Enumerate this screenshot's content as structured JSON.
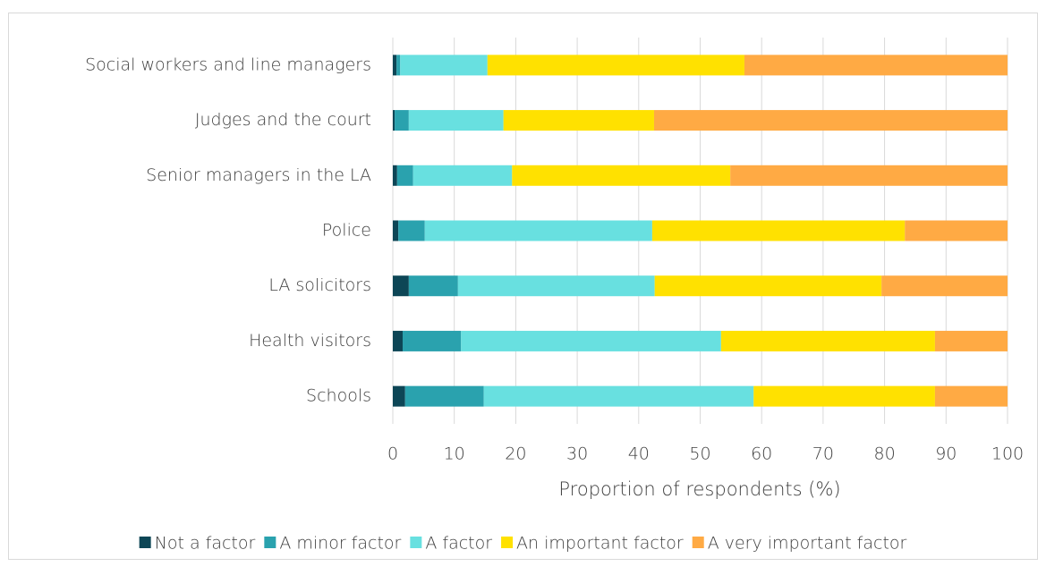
{
  "chart_data": {
    "type": "bar",
    "orientation": "horizontal",
    "stacked": true,
    "categories": [
      "Social workers and line managers",
      "Judges and the court",
      "Senior managers in the LA",
      "Police",
      "LA solicitors",
      "Health visitors",
      "Schools"
    ],
    "series": [
      {
        "name": "Not a factor",
        "color": "#0d4656",
        "values": [
          0.6,
          0.3,
          0.7,
          0.9,
          2.6,
          1.6,
          2.0
        ]
      },
      {
        "name": "A minor factor",
        "color": "#2aa2ae",
        "values": [
          0.6,
          2.3,
          2.6,
          4.3,
          8.0,
          9.5,
          12.8
        ]
      },
      {
        "name": "A factor",
        "color": "#68e0e0",
        "values": [
          14.2,
          15.4,
          16.1,
          37.0,
          32.0,
          42.3,
          43.9
        ]
      },
      {
        "name": "An important factor",
        "color": "#ffe100",
        "values": [
          41.8,
          24.5,
          35.5,
          41.1,
          36.9,
          34.8,
          29.5
        ]
      },
      {
        "name": "A very important factor",
        "color": "#ffaa44",
        "values": [
          42.8,
          57.5,
          45.1,
          16.7,
          20.5,
          11.8,
          11.8
        ]
      }
    ],
    "xlabel": "Proportion of respondents (%)",
    "xlim": [
      0,
      100
    ],
    "xticks": [
      0,
      10,
      20,
      30,
      40,
      50,
      60,
      70,
      80,
      90,
      100
    ],
    "grid": true,
    "legend": "bottom"
  }
}
